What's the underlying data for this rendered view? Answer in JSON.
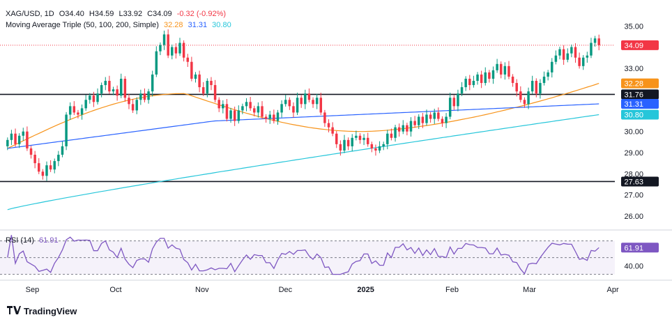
{
  "header": {
    "symbol": "XAG/USD, 1D",
    "open": "O34.40",
    "high": "H34.59",
    "low": "L33.92",
    "close": "C34.09",
    "change": "-0.32 (-0.92%)",
    "ma_label": "Moving Average Triple (50, 100, 200, Simple)",
    "ma50": "32.28",
    "ma100": "31.31",
    "ma200": "30.80",
    "rsi_label": "RSI (14)",
    "rsi_value": "61.91"
  },
  "colors": {
    "up": "#089981",
    "down": "#f23645",
    "ma50": "#f7931a",
    "ma100": "#2962ff",
    "ma200": "#26c6da",
    "rsi": "#7e57c2"
  },
  "branding": {
    "logo": "TradingView"
  },
  "chart_data": [
    {
      "type": "candlestick",
      "title": "XAG/USD, 1D",
      "y_ticks": [
        "35.00",
        "33.00",
        "31.76",
        "30.00",
        "29.00",
        "28.00",
        "27.00",
        "26.00"
      ],
      "ylim": [
        25.5,
        35.9
      ],
      "x_labels": [
        "Sep",
        "Oct",
        "Nov",
        "Dec",
        "2025",
        "Feb",
        "Mar",
        "Apr"
      ],
      "price_labels": [
        {
          "label": "34.09",
          "value": 34.09,
          "color": "#f23645"
        },
        {
          "label": "32.28",
          "value": 32.28,
          "color": "#f7931a"
        },
        {
          "label": "31.76",
          "value": 31.76,
          "color": "#131722"
        },
        {
          "label": "31.31",
          "value": 31.31,
          "color": "#2962ff"
        },
        {
          "label": "30.80",
          "value": 30.8,
          "color": "#26c6da"
        },
        {
          "label": "27.63",
          "value": 27.63,
          "color": "#131722"
        }
      ],
      "horizontal_lines": [
        31.76,
        27.63
      ],
      "current_price_line": 34.09,
      "closes": [
        29.6,
        29.9,
        29.4,
        29.8,
        30.0,
        29.2,
        28.9,
        28.5,
        28.1,
        27.9,
        28.4,
        28.2,
        28.6,
        28.9,
        29.3,
        30.8,
        31.2,
        30.9,
        30.8,
        31.1,
        31.5,
        31.7,
        31.4,
        31.8,
        32.2,
        32.4,
        31.9,
        32.0,
        31.7,
        32.5,
        31.6,
        31.3,
        31.0,
        31.5,
        31.8,
        31.5,
        31.9,
        32.7,
        33.8,
        34.1,
        34.6,
        33.6,
        34.0,
        33.7,
        34.2,
        33.5,
        33.3,
        32.5,
        32.7,
        32.1,
        31.8,
        32.4,
        32.2,
        31.5,
        31.1,
        31.3,
        30.6,
        31.0,
        30.5,
        31.0,
        31.2,
        31.4,
        31.1,
        30.9,
        31.2,
        30.7,
        30.6,
        30.8,
        30.5,
        30.9,
        31.3,
        31.5,
        31.2,
        30.9,
        31.6,
        31.3,
        31.8,
        31.5,
        31.3,
        31.6,
        30.9,
        30.4,
        30.2,
        29.9,
        29.4,
        29.1,
        29.6,
        29.3,
        29.7,
        29.8,
        29.6,
        29.7,
        29.4,
        29.2,
        29.1,
        29.3,
        29.4,
        29.9,
        29.7,
        30.2,
        30.0,
        30.3,
        30.0,
        30.5,
        30.3,
        30.7,
        30.4,
        30.8,
        30.6,
        30.9,
        30.6,
        30.4,
        30.7,
        31.6,
        31.2,
        31.8,
        32.1,
        32.5,
        32.2,
        32.4,
        32.7,
        32.3,
        32.8,
        32.5,
        32.9,
        33.2,
        32.7,
        33.1,
        32.6,
        32.3,
        31.9,
        31.5,
        31.3,
        31.9,
        32.4,
        31.8,
        32.3,
        32.6,
        32.8,
        33.3,
        33.6,
        33.9,
        33.4,
        33.7,
        34.0,
        33.5,
        33.1,
        33.5,
        33.6,
        34.2,
        34.41,
        34.09
      ],
      "rsi": {
        "levels": [
          70,
          50,
          30
        ],
        "tick": "40.00",
        "ylim": [
          28,
          78
        ],
        "value": 61.91
      },
      "series": [
        {
          "name": "MA 50",
          "last": 32.28
        },
        {
          "name": "MA 100",
          "last": 31.31
        },
        {
          "name": "MA 200",
          "last": 30.8
        }
      ]
    }
  ]
}
